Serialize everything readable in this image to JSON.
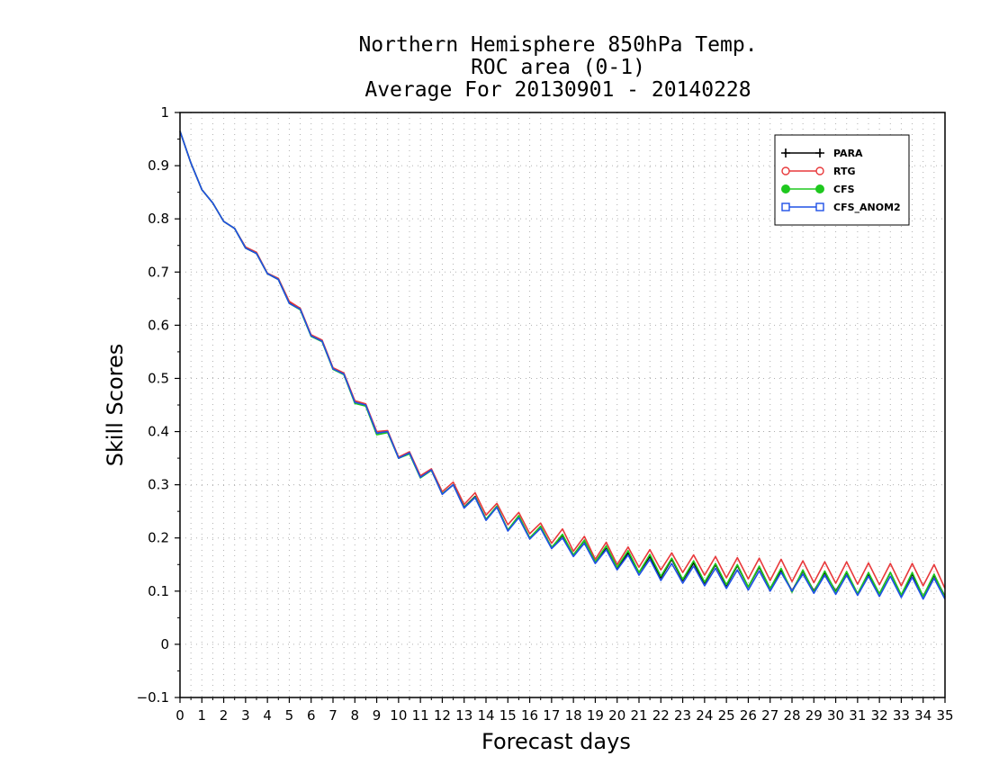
{
  "chart_data": {
    "type": "line",
    "title_lines": [
      "Northern Hemisphere 850hPa Temp.",
      "ROC area (0-1)",
      "Average For 20130901 - 20140228"
    ],
    "xlabel": "Forecast days",
    "ylabel": "Skill Scores",
    "xlim": [
      0,
      35
    ],
    "ylim": [
      -0.1,
      1
    ],
    "x_ticks": [
      0,
      1,
      2,
      3,
      4,
      5,
      6,
      7,
      8,
      9,
      10,
      11,
      12,
      13,
      14,
      15,
      16,
      17,
      18,
      19,
      20,
      21,
      22,
      23,
      24,
      25,
      26,
      27,
      28,
      29,
      30,
      31,
      32,
      33,
      34,
      35
    ],
    "y_ticks": [
      -0.1,
      0,
      0.1,
      0.2,
      0.3,
      0.4,
      0.5,
      0.6,
      0.7,
      0.8,
      0.9,
      1
    ],
    "y_tick_labels": [
      "−0.1",
      "0",
      "0.1",
      "0.2",
      "0.3",
      "0.4",
      "0.5",
      "0.6",
      "0.7",
      "0.8",
      "0.9",
      "1"
    ],
    "grid": true,
    "legend_position": "top-right",
    "x": [
      0,
      0.5,
      1,
      1.5,
      2,
      2.5,
      3,
      3.5,
      4,
      4.5,
      5,
      5.5,
      6,
      6.5,
      7,
      7.5,
      8,
      8.5,
      9,
      9.5,
      10,
      10.5,
      11,
      11.5,
      12,
      12.5,
      13,
      13.5,
      14,
      14.5,
      15,
      15.5,
      16,
      16.5,
      17,
      17.5,
      18,
      18.5,
      19,
      19.5,
      20,
      20.5,
      21,
      21.5,
      22,
      22.5,
      23,
      23.5,
      24,
      24.5,
      25,
      25.5,
      26,
      26.5,
      27,
      27.5,
      28,
      28.5,
      29,
      29.5,
      30,
      30.5,
      31,
      31.5,
      32,
      32.5,
      33,
      33.5,
      34,
      34.5,
      35
    ],
    "series": [
      {
        "name": "PARA",
        "color": "#000000",
        "marker": "plus",
        "values": [
          0.965,
          0.905,
          0.855,
          0.83,
          0.795,
          0.782,
          0.745,
          0.735,
          0.697,
          0.686,
          0.642,
          0.63,
          0.58,
          0.57,
          0.518,
          0.508,
          0.455,
          0.45,
          0.397,
          0.4,
          0.35,
          0.36,
          0.315,
          0.328,
          0.283,
          0.3,
          0.258,
          0.278,
          0.235,
          0.258,
          0.215,
          0.24,
          0.2,
          0.22,
          0.182,
          0.205,
          0.168,
          0.195,
          0.155,
          0.18,
          0.142,
          0.172,
          0.135,
          0.165,
          0.125,
          0.16,
          0.12,
          0.153,
          0.115,
          0.15,
          0.11,
          0.148,
          0.108,
          0.145,
          0.105,
          0.14,
          0.1,
          0.138,
          0.1,
          0.135,
          0.1,
          0.135,
          0.095,
          0.132,
          0.095,
          0.135,
          0.092,
          0.132,
          0.09,
          0.13,
          0.09
        ]
      },
      {
        "name": "RTG",
        "color": "#e8393b",
        "marker": "circle",
        "values": [
          0.965,
          0.905,
          0.855,
          0.83,
          0.795,
          0.782,
          0.747,
          0.737,
          0.698,
          0.688,
          0.645,
          0.632,
          0.582,
          0.572,
          0.52,
          0.51,
          0.458,
          0.452,
          0.4,
          0.402,
          0.352,
          0.362,
          0.317,
          0.33,
          0.287,
          0.305,
          0.263,
          0.285,
          0.243,
          0.265,
          0.225,
          0.248,
          0.208,
          0.228,
          0.19,
          0.217,
          0.175,
          0.203,
          0.16,
          0.192,
          0.15,
          0.183,
          0.145,
          0.178,
          0.14,
          0.172,
          0.135,
          0.168,
          0.13,
          0.165,
          0.125,
          0.163,
          0.123,
          0.162,
          0.12,
          0.16,
          0.118,
          0.157,
          0.116,
          0.155,
          0.115,
          0.155,
          0.113,
          0.153,
          0.112,
          0.152,
          0.11,
          0.152,
          0.11,
          0.15,
          0.105
        ]
      },
      {
        "name": "CFS",
        "color": "#1ec81e",
        "marker": "filled-circle",
        "values": [
          0.965,
          0.905,
          0.855,
          0.83,
          0.795,
          0.782,
          0.745,
          0.735,
          0.697,
          0.686,
          0.641,
          0.629,
          0.579,
          0.569,
          0.517,
          0.507,
          0.453,
          0.448,
          0.394,
          0.398,
          0.35,
          0.358,
          0.313,
          0.327,
          0.283,
          0.3,
          0.257,
          0.277,
          0.235,
          0.26,
          0.215,
          0.242,
          0.2,
          0.222,
          0.182,
          0.207,
          0.168,
          0.196,
          0.155,
          0.185,
          0.145,
          0.176,
          0.135,
          0.169,
          0.128,
          0.162,
          0.122,
          0.157,
          0.117,
          0.152,
          0.112,
          0.15,
          0.108,
          0.147,
          0.105,
          0.143,
          0.098,
          0.14,
          0.098,
          0.138,
          0.098,
          0.137,
          0.095,
          0.135,
          0.095,
          0.135,
          0.093,
          0.135,
          0.09,
          0.132,
          0.088
        ]
      },
      {
        "name": "CFS_ANOM2",
        "color": "#1e50e6",
        "marker": "square",
        "values": [
          0.965,
          0.905,
          0.855,
          0.83,
          0.795,
          0.782,
          0.745,
          0.735,
          0.697,
          0.686,
          0.641,
          0.63,
          0.58,
          0.57,
          0.518,
          0.508,
          0.455,
          0.45,
          0.397,
          0.4,
          0.35,
          0.36,
          0.314,
          0.328,
          0.282,
          0.3,
          0.256,
          0.276,
          0.233,
          0.258,
          0.213,
          0.238,
          0.198,
          0.218,
          0.18,
          0.2,
          0.165,
          0.19,
          0.152,
          0.178,
          0.14,
          0.168,
          0.13,
          0.16,
          0.12,
          0.152,
          0.115,
          0.147,
          0.11,
          0.143,
          0.105,
          0.14,
          0.102,
          0.138,
          0.1,
          0.135,
          0.1,
          0.132,
          0.096,
          0.13,
          0.094,
          0.13,
          0.092,
          0.128,
          0.09,
          0.128,
          0.088,
          0.126,
          0.085,
          0.124,
          0.085
        ]
      }
    ]
  }
}
